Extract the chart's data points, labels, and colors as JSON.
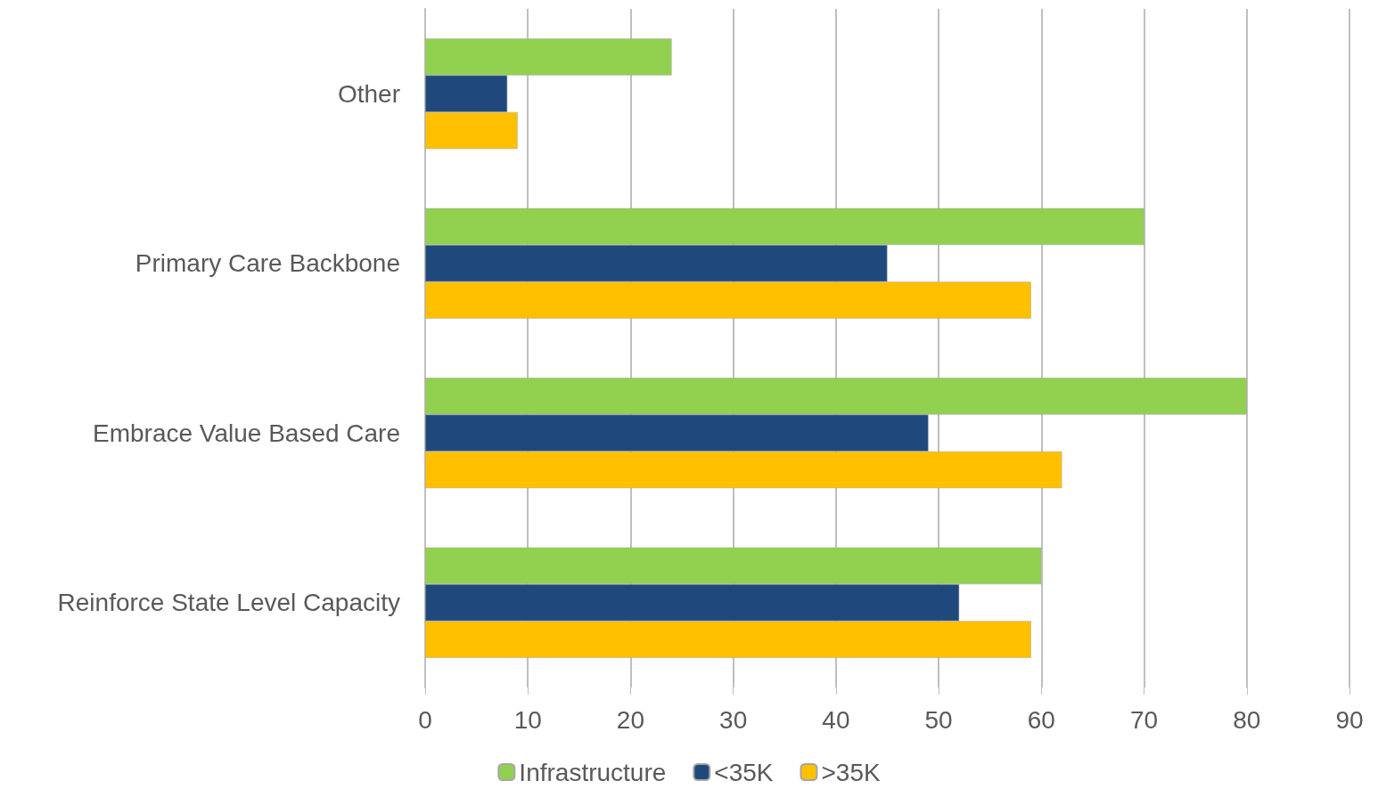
{
  "chart_data": {
    "type": "bar",
    "orientation": "horizontal",
    "categories": [
      "Other",
      "Primary Care Backbone",
      "Embrace Value Based Care",
      "Reinforce State Level Capacity"
    ],
    "series": [
      {
        "name": "Infrastructure",
        "color": "#92d050",
        "values": [
          24,
          70,
          80,
          60
        ]
      },
      {
        "name": "<35K",
        "color": "#1f497d",
        "values": [
          8,
          45,
          49,
          52
        ]
      },
      {
        "name": ">35K",
        "color": "#ffc000",
        "values": [
          9,
          59,
          62,
          59
        ]
      }
    ],
    "xlim": [
      0,
      90
    ],
    "xticks": [
      0,
      10,
      20,
      30,
      40,
      50,
      60,
      70,
      80,
      90
    ],
    "grid": "x",
    "legend": "bottom"
  }
}
